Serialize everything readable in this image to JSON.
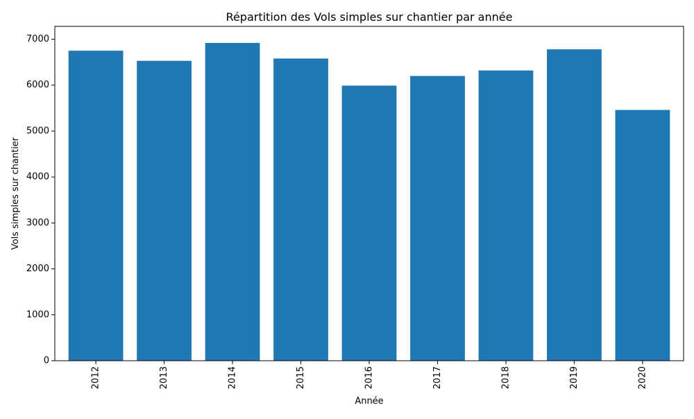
{
  "chart_data": {
    "type": "bar",
    "title": "Répartition des Vols simples sur chantier par année",
    "xlabel": "Année",
    "ylabel": "Vols simples sur chantier",
    "categories": [
      "2012",
      "2013",
      "2014",
      "2015",
      "2016",
      "2017",
      "2018",
      "2019",
      "2020"
    ],
    "values": [
      6750,
      6530,
      6920,
      6580,
      5990,
      6200,
      6320,
      6780,
      5460
    ],
    "ylim": [
      0,
      7280
    ],
    "yticks": [
      0,
      1000,
      2000,
      3000,
      4000,
      5000,
      6000,
      7000
    ],
    "grid": false,
    "bar_color": "#1f77b4"
  }
}
